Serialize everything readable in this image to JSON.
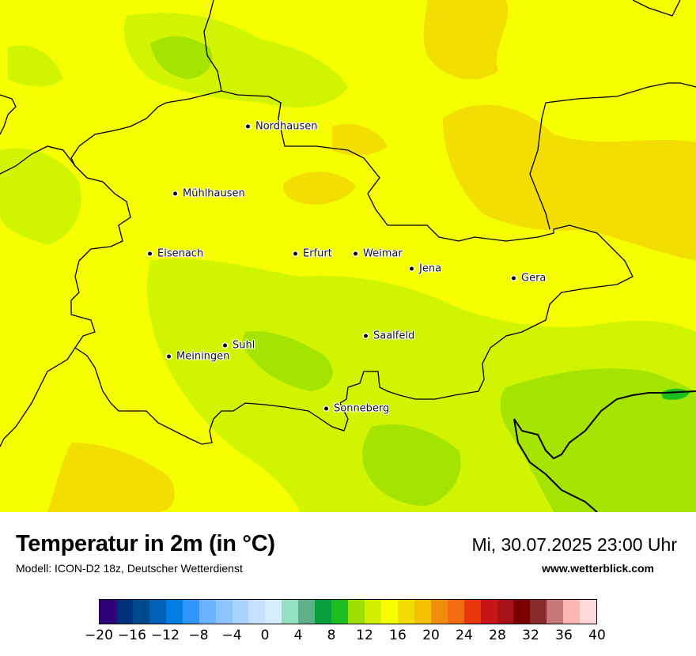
{
  "map": {
    "cities": [
      {
        "name": "Nordhausen"
      },
      {
        "name": "Mühlhausen"
      },
      {
        "name": "Eisenach"
      },
      {
        "name": "Erfurt"
      },
      {
        "name": "Weimar"
      },
      {
        "name": "Jena"
      },
      {
        "name": "Gera"
      },
      {
        "name": "Saalfeld"
      },
      {
        "name": "Suhl"
      },
      {
        "name": "Meiningen"
      },
      {
        "name": "Sonneberg"
      }
    ],
    "colors": {
      "t14": "#d1f500",
      "t16": "#f5ff00",
      "t18": "#f2de00",
      "t12": "#a4e400",
      "border": "#000000"
    }
  },
  "footer": {
    "title": "Temperatur in 2m (in °C)",
    "model": "Modell: ICON-D2 18z, Deutscher Wetterdienst",
    "datetime": "Mi, 30.07.2025 23:00 Uhr",
    "website": "www.wetterblick.com"
  },
  "legend": {
    "colors": [
      "#2e007a",
      "#00307c",
      "#004a8c",
      "#0060b8",
      "#007ee6",
      "#2f96ff",
      "#6ab4ff",
      "#8cc4ff",
      "#a9d4ff",
      "#c4e2ff",
      "#d8ecff",
      "#93dfc2",
      "#5cb18b",
      "#0a9e3c",
      "#1cbd20",
      "#9ae100",
      "#d2f100",
      "#f5ff00",
      "#f2dc00",
      "#f2c000",
      "#f18c0c",
      "#f26a12",
      "#e8380c",
      "#c81414",
      "#a61216",
      "#7a0000",
      "#8a2a2a",
      "#c87878",
      "#ffb4b4",
      "#ffd8dc"
    ],
    "ticks": [
      "−20",
      "−16",
      "−12",
      "−8",
      "−4",
      "0",
      "4",
      "8",
      "12",
      "16",
      "20",
      "24",
      "28",
      "32",
      "36",
      "40"
    ]
  }
}
